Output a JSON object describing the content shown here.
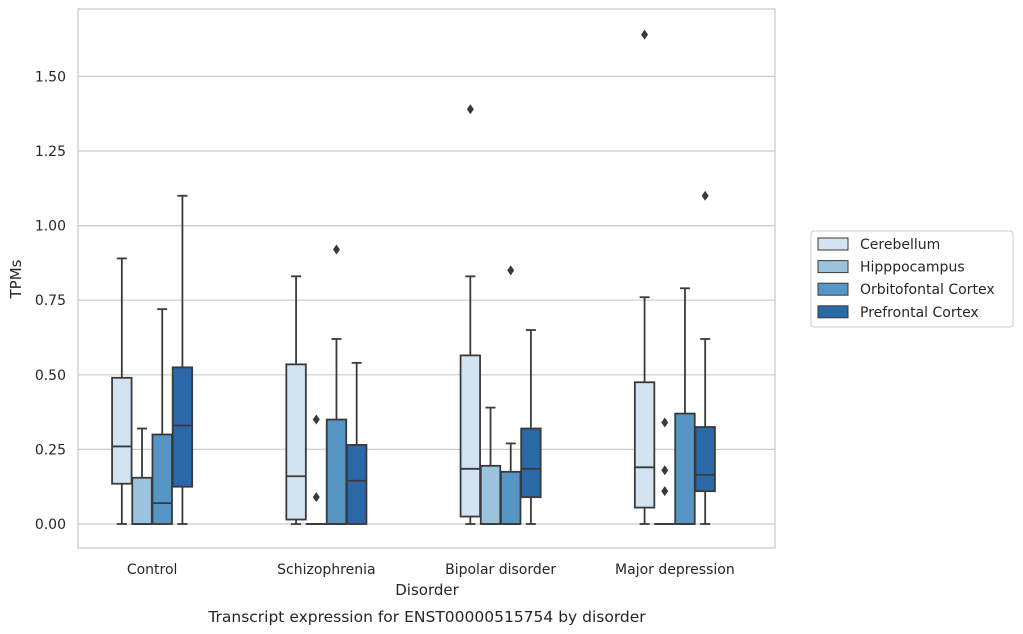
{
  "chart_data": {
    "type": "box",
    "title": "Transcript expression for ENST00000515754 by disorder",
    "xlabel": "Disorder",
    "ylabel": "TPMs",
    "ylim": [
      -0.08,
      1.73
    ],
    "yticks": [
      "0.00",
      "0.25",
      "0.50",
      "0.75",
      "1.00",
      "1.25",
      "1.50"
    ],
    "grid": true,
    "legend_position": "right",
    "categories": [
      "Control",
      "Schizophrenia",
      "Bipolar disorder",
      "Major depression"
    ],
    "series": [
      {
        "name": "Cerebellum",
        "color": "#d4e3f2",
        "boxes": [
          {
            "whislo": 0.0,
            "q1": 0.135,
            "med": 0.26,
            "q3": 0.49,
            "whishi": 0.89,
            "fliers": []
          },
          {
            "whislo": 0.0,
            "q1": 0.015,
            "med": 0.16,
            "q3": 0.535,
            "whishi": 0.83,
            "fliers": []
          },
          {
            "whislo": 0.0,
            "q1": 0.025,
            "med": 0.185,
            "q3": 0.565,
            "whishi": 0.83,
            "fliers": [
              1.39
            ]
          },
          {
            "whislo": 0.0,
            "q1": 0.055,
            "med": 0.19,
            "q3": 0.475,
            "whishi": 0.76,
            "fliers": [
              1.64
            ]
          }
        ]
      },
      {
        "name": "Hipppocampus",
        "color": "#9ac3de",
        "boxes": [
          {
            "whislo": 0.0,
            "q1": 0.0,
            "med": 0.0,
            "q3": 0.155,
            "whishi": 0.32,
            "fliers": []
          },
          {
            "whislo": 0.0,
            "q1": 0.0,
            "med": 0.0,
            "q3": 0.0,
            "whishi": 0.0,
            "fliers": [
              0.35,
              0.09
            ]
          },
          {
            "whislo": 0.0,
            "q1": 0.0,
            "med": 0.0,
            "q3": 0.195,
            "whishi": 0.39,
            "fliers": []
          },
          {
            "whislo": 0.0,
            "q1": 0.0,
            "med": 0.0,
            "q3": 0.0,
            "whishi": 0.0,
            "fliers": [
              0.34,
              0.18,
              0.11
            ]
          }
        ]
      },
      {
        "name": "Orbitofontal Cortex",
        "color": "#5596c5",
        "boxes": [
          {
            "whislo": 0.0,
            "q1": 0.0,
            "med": 0.07,
            "q3": 0.3,
            "whishi": 0.72,
            "fliers": []
          },
          {
            "whislo": 0.0,
            "q1": 0.0,
            "med": 0.0,
            "q3": 0.35,
            "whishi": 0.62,
            "fliers": [
              0.92
            ]
          },
          {
            "whislo": 0.0,
            "q1": 0.0,
            "med": 0.0,
            "q3": 0.175,
            "whishi": 0.27,
            "fliers": [
              0.85
            ]
          },
          {
            "whislo": 0.0,
            "q1": 0.0,
            "med": 0.0,
            "q3": 0.37,
            "whishi": 0.79,
            "fliers": []
          }
        ]
      },
      {
        "name": "Prefrontal Cortex",
        "color": "#2a68a7",
        "boxes": [
          {
            "whislo": 0.0,
            "q1": 0.125,
            "med": 0.33,
            "q3": 0.525,
            "whishi": 1.1,
            "fliers": []
          },
          {
            "whislo": 0.0,
            "q1": 0.0,
            "med": 0.145,
            "q3": 0.265,
            "whishi": 0.54,
            "fliers": []
          },
          {
            "whislo": 0.0,
            "q1": 0.09,
            "med": 0.185,
            "q3": 0.32,
            "whishi": 0.65,
            "fliers": []
          },
          {
            "whislo": 0.0,
            "q1": 0.11,
            "med": 0.165,
            "q3": 0.325,
            "whishi": 0.62,
            "fliers": [
              1.1
            ]
          }
        ]
      }
    ]
  }
}
